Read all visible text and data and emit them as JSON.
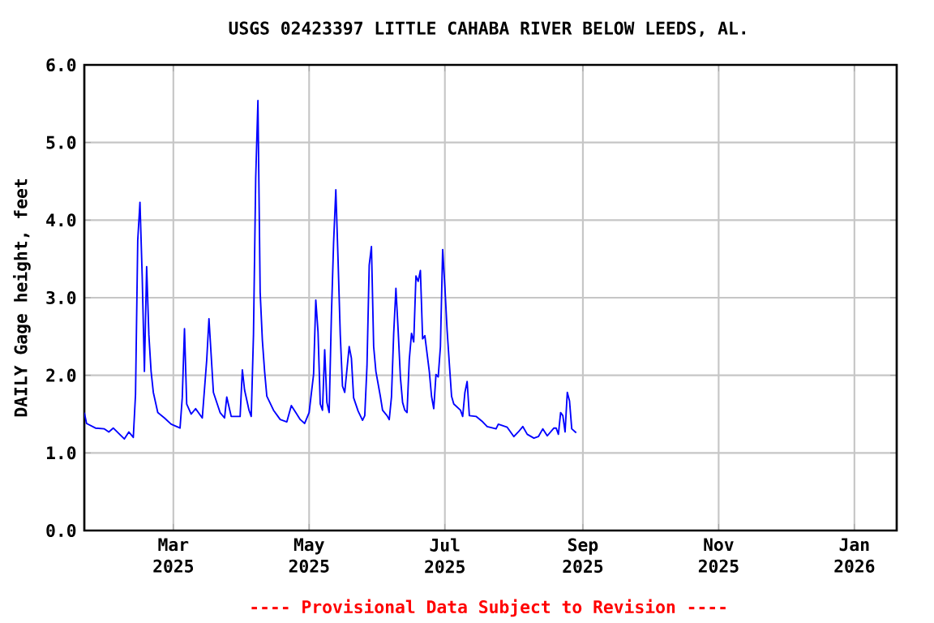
{
  "chart_data": {
    "type": "line",
    "title": "USGS 02423397 LITTLE CAHABA RIVER BELOW LEEDS, AL.",
    "ylabel": "DAILY Gage height, feet",
    "annotations": [
      "---- Provisional Data Subject to Revision ----"
    ],
    "color": "#0000ff",
    "grid": true,
    "xlim": [
      "2025-01-20",
      "2026-01-20"
    ],
    "ylim": [
      0,
      6
    ],
    "xticks": [
      {
        "value": "2025-03-01",
        "label": "Mar 2025"
      },
      {
        "value": "2025-05-01",
        "label": "May 2025"
      },
      {
        "value": "2025-07-01",
        "label": "Jul 2025"
      },
      {
        "value": "2025-09-01",
        "label": "Sep 2025"
      },
      {
        "value": "2025-11-01",
        "label": "Nov 2025"
      },
      {
        "value": "2026-01-01",
        "label": "Jan 2026"
      }
    ],
    "yticks": [
      {
        "value": 0,
        "label": "0.0"
      },
      {
        "value": 1,
        "label": "1.0"
      },
      {
        "value": 2,
        "label": "2.0"
      },
      {
        "value": 3,
        "label": "3.0"
      },
      {
        "value": 4,
        "label": "4.0"
      },
      {
        "value": 5,
        "label": "5.0"
      },
      {
        "value": 6,
        "label": "6.0"
      }
    ],
    "x": [
      "2025-01-20",
      "2025-01-21",
      "2025-01-25",
      "2025-01-29",
      "2025-01-31",
      "2025-02-02",
      "2025-02-07",
      "2025-02-09",
      "2025-02-11",
      "2025-02-12",
      "2025-02-13",
      "2025-02-14",
      "2025-02-15",
      "2025-02-16",
      "2025-02-17",
      "2025-02-18",
      "2025-02-19",
      "2025-02-20",
      "2025-02-22",
      "2025-02-25",
      "2025-02-28",
      "2025-03-04",
      "2025-03-05",
      "2025-03-06",
      "2025-03-07",
      "2025-03-09",
      "2025-03-11",
      "2025-03-14",
      "2025-03-16",
      "2025-03-17",
      "2025-03-19",
      "2025-03-22",
      "2025-03-24",
      "2025-03-25",
      "2025-03-27",
      "2025-03-31",
      "2025-04-01",
      "2025-04-02",
      "2025-04-04",
      "2025-04-05",
      "2025-04-06",
      "2025-04-07",
      "2025-04-08",
      "2025-04-09",
      "2025-04-10",
      "2025-04-11",
      "2025-04-12",
      "2025-04-15",
      "2025-04-18",
      "2025-04-21",
      "2025-04-23",
      "2025-04-25",
      "2025-04-27",
      "2025-04-29",
      "2025-05-01",
      "2025-05-03",
      "2025-05-04",
      "2025-05-05",
      "2025-05-06",
      "2025-05-07",
      "2025-05-08",
      "2025-05-09",
      "2025-05-10",
      "2025-05-11",
      "2025-05-12",
      "2025-05-13",
      "2025-05-14",
      "2025-05-15",
      "2025-05-16",
      "2025-05-17",
      "2025-05-19",
      "2025-05-20",
      "2025-05-21",
      "2025-05-23",
      "2025-05-25",
      "2025-05-26",
      "2025-05-27",
      "2025-05-28",
      "2025-05-29",
      "2025-05-30",
      "2025-05-31",
      "2025-06-02",
      "2025-06-03",
      "2025-06-05",
      "2025-06-06",
      "2025-06-07",
      "2025-06-08",
      "2025-06-09",
      "2025-06-10",
      "2025-06-11",
      "2025-06-12",
      "2025-06-13",
      "2025-06-14",
      "2025-06-15",
      "2025-06-16",
      "2025-06-17",
      "2025-06-18",
      "2025-06-19",
      "2025-06-20",
      "2025-06-21",
      "2025-06-22",
      "2025-06-24",
      "2025-06-25",
      "2025-06-26",
      "2025-06-27",
      "2025-06-28",
      "2025-06-29",
      "2025-06-30",
      "2025-07-01",
      "2025-07-02",
      "2025-07-03",
      "2025-07-04",
      "2025-07-05",
      "2025-07-08",
      "2025-07-09",
      "2025-07-10",
      "2025-07-11",
      "2025-07-12",
      "2025-07-15",
      "2025-07-18",
      "2025-07-20",
      "2025-07-24",
      "2025-07-25",
      "2025-07-29",
      "2025-08-01",
      "2025-08-03",
      "2025-08-05",
      "2025-08-07",
      "2025-08-10",
      "2025-08-12",
      "2025-08-14",
      "2025-08-16",
      "2025-08-19",
      "2025-08-20",
      "2025-08-21",
      "2025-08-22",
      "2025-08-23",
      "2025-08-24",
      "2025-08-25",
      "2025-08-26",
      "2025-08-27",
      "2025-08-29"
    ],
    "values": [
      1.52,
      1.38,
      1.32,
      1.31,
      1.27,
      1.32,
      1.18,
      1.27,
      1.2,
      1.75,
      3.74,
      4.23,
      3.28,
      2.05,
      3.4,
      2.52,
      2.05,
      1.78,
      1.52,
      1.45,
      1.37,
      1.32,
      1.71,
      2.6,
      1.63,
      1.5,
      1.57,
      1.45,
      2.2,
      2.73,
      1.78,
      1.52,
      1.45,
      1.72,
      1.47,
      1.47,
      2.07,
      1.81,
      1.55,
      1.47,
      2.52,
      4.54,
      5.54,
      3.07,
      2.45,
      2.05,
      1.73,
      1.55,
      1.43,
      1.4,
      1.61,
      1.52,
      1.43,
      1.38,
      1.52,
      2.01,
      2.97,
      2.56,
      1.63,
      1.55,
      2.33,
      1.65,
      1.52,
      2.76,
      3.71,
      4.39,
      3.49,
      2.52,
      1.86,
      1.78,
      2.37,
      2.22,
      1.71,
      1.54,
      1.42,
      1.48,
      2.12,
      3.42,
      3.66,
      2.37,
      2.05,
      1.73,
      1.55,
      1.48,
      1.43,
      1.72,
      2.54,
      3.12,
      2.58,
      1.98,
      1.65,
      1.55,
      1.52,
      2.2,
      2.54,
      2.43,
      3.28,
      3.21,
      3.35,
      2.47,
      2.51,
      2.05,
      1.73,
      1.57,
      2.01,
      1.98,
      2.37,
      3.62,
      3.14,
      2.58,
      2.15,
      1.73,
      1.63,
      1.55,
      1.47,
      1.78,
      1.92,
      1.48,
      1.47,
      1.4,
      1.34,
      1.31,
      1.37,
      1.33,
      1.21,
      1.27,
      1.34,
      1.24,
      1.19,
      1.21,
      1.31,
      1.22,
      1.32,
      1.32,
      1.24,
      1.52,
      1.48,
      1.27,
      1.78,
      1.67,
      1.31,
      1.26
    ]
  }
}
